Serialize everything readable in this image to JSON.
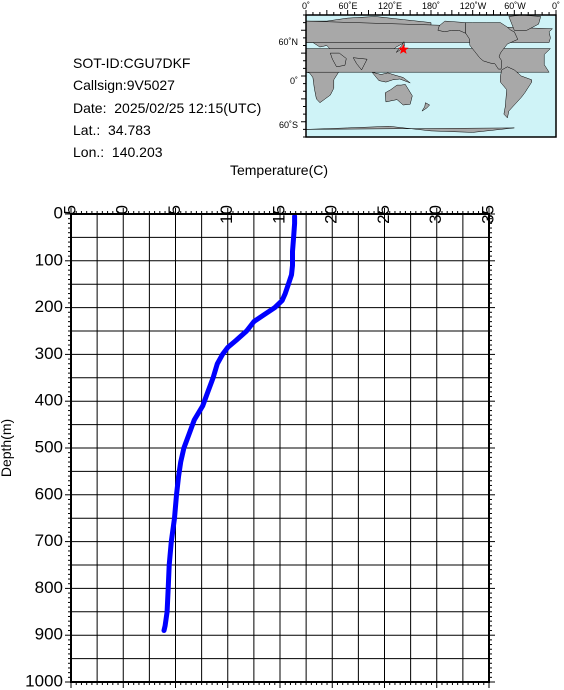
{
  "info": {
    "sot_id": "SOT-ID:CGU7DKF",
    "callsign": "Callsign:9V5027",
    "date": "Date:  2025/02/25 12:15(UTC)",
    "lat": "Lat.:  34.783",
    "lon": "Lon.:  140.203"
  },
  "map": {
    "top_labels": [
      "0˚",
      "60˚E",
      "120˚E",
      "180˚",
      "120˚W",
      "60˚W",
      "0˚"
    ],
    "left_labels": [
      "60˚N",
      "0˚",
      "60˚S"
    ],
    "marker": {
      "lon": 140.203,
      "lat": 34.783,
      "color": "#ff0000"
    },
    "colors": {
      "ocean": "#cff3f7",
      "land": "#a8a8a8"
    }
  },
  "chart_data": {
    "type": "line",
    "xlabel": "Temperature(C)",
    "ylabel": "Depth(m)",
    "xlim": [
      -5,
      35
    ],
    "ylim": [
      1000,
      0
    ],
    "x_ticks": [
      "-5",
      "0",
      "5",
      "10",
      "15",
      "20",
      "25",
      "30",
      "35"
    ],
    "y_ticks": [
      "0",
      "100",
      "200",
      "300",
      "400",
      "500",
      "600",
      "700",
      "800",
      "900",
      "1000"
    ],
    "grid": true,
    "line_color": "#0000ff",
    "series": [
      {
        "points": [
          [
            16.4,
            5
          ],
          [
            16.4,
            20
          ],
          [
            16.3,
            50
          ],
          [
            16.2,
            80
          ],
          [
            16.2,
            110
          ],
          [
            16.1,
            130
          ],
          [
            15.8,
            150
          ],
          [
            15.5,
            170
          ],
          [
            15.2,
            185
          ],
          [
            14.5,
            200
          ],
          [
            13.5,
            215
          ],
          [
            12.5,
            230
          ],
          [
            11.8,
            250
          ],
          [
            10.8,
            270
          ],
          [
            10.0,
            285
          ],
          [
            9.5,
            300
          ],
          [
            9.0,
            320
          ],
          [
            8.6,
            350
          ],
          [
            8.1,
            380
          ],
          [
            7.6,
            410
          ],
          [
            6.8,
            440
          ],
          [
            6.3,
            470
          ],
          [
            5.8,
            500
          ],
          [
            5.5,
            530
          ],
          [
            5.3,
            560
          ],
          [
            5.1,
            600
          ],
          [
            4.9,
            650
          ],
          [
            4.6,
            700
          ],
          [
            4.4,
            750
          ],
          [
            4.3,
            800
          ],
          [
            4.2,
            850
          ],
          [
            4.0,
            880
          ],
          [
            3.9,
            890
          ]
        ]
      }
    ]
  }
}
